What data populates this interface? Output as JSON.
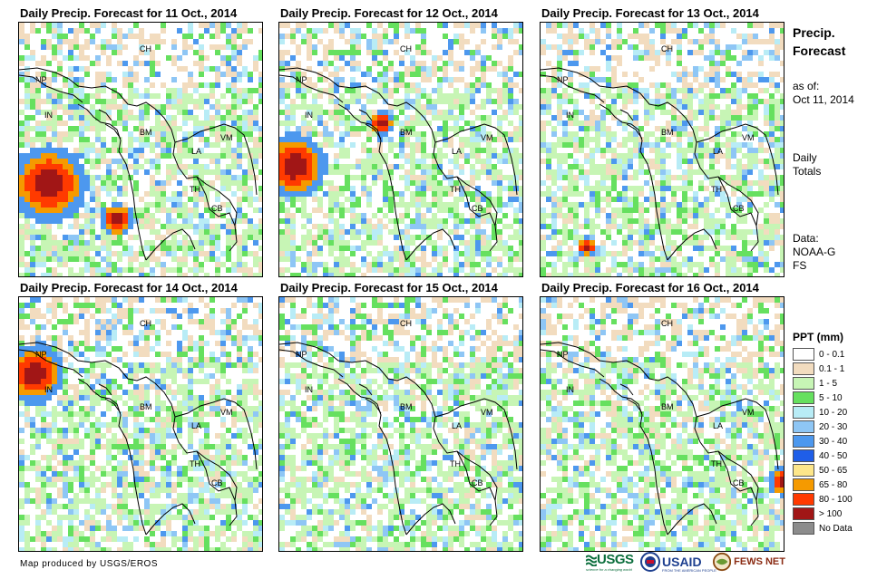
{
  "panels": [
    {
      "title": "Daily Precip. Forecast for 11 Oct., 2014"
    },
    {
      "title": "Daily Precip. Forecast for 12 Oct., 2014"
    },
    {
      "title": "Daily Precip. Forecast for 13 Oct., 2014"
    },
    {
      "title": "Daily Precip. Forecast for 14 Oct., 2014"
    },
    {
      "title": "Daily Precip. Forecast for 15 Oct., 2014"
    },
    {
      "title": "Daily Precip. Forecast for 16 Oct., 2014"
    }
  ],
  "country_labels": [
    "CH",
    "NP",
    "IN",
    "BM",
    "LA",
    "VM",
    "TH",
    "CB"
  ],
  "side": {
    "title": "Precip. Forecast",
    "as_of_label": "as of:",
    "as_of_date": "Oct 11, 2014",
    "totals": "Daily Totals",
    "data_label": "Data:",
    "data_source": "NOAA-GFS"
  },
  "legend": {
    "title": "PPT (mm)",
    "items": [
      {
        "label": "0 - 0.1",
        "color": "#ffffff"
      },
      {
        "label": "0.1 - 1",
        "color": "#f2dcbf"
      },
      {
        "label": "1 - 5",
        "color": "#c7f5b5"
      },
      {
        "label": "5 - 10",
        "color": "#66e05f"
      },
      {
        "label": "10 - 20",
        "color": "#b8ecf6"
      },
      {
        "label": "20 - 30",
        "color": "#8ec6f5"
      },
      {
        "label": "30 - 40",
        "color": "#4d98ee"
      },
      {
        "label": "40 - 50",
        "color": "#1f5ee8"
      },
      {
        "label": "50 - 65",
        "color": "#fde68a"
      },
      {
        "label": "65 - 80",
        "color": "#f59a00"
      },
      {
        "label": "80 - 100",
        "color": "#ff3a00"
      },
      {
        "label": "> 100",
        "color": "#a11616"
      },
      {
        "label": "No Data",
        "color": "#8c8c8c"
      }
    ]
  },
  "credit": "Map produced by USGS/EROS",
  "logos": {
    "usgs": "USGS",
    "usgs_tagline": "science for a changing world",
    "usaid": "USAID",
    "usaid_tagline": "FROM THE AMERICAN PEOPLE",
    "fewsnet": "FEWS NET"
  }
}
